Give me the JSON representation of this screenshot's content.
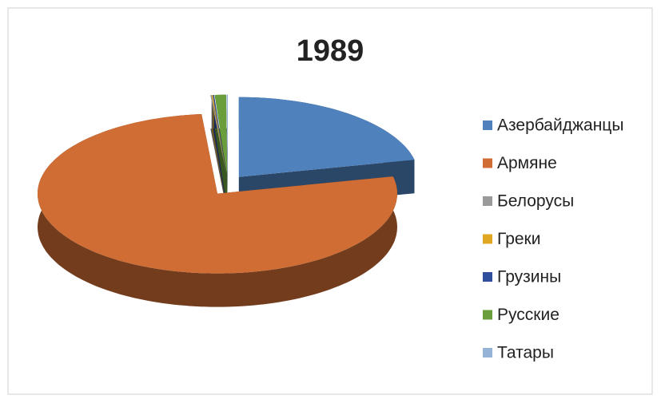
{
  "chart_data": {
    "type": "pie",
    "title": "1989",
    "categories": [
      "Азербайджанцы",
      "Армяне",
      "Белорусы",
      "Греки",
      "Грузины",
      "Русские",
      "Татары"
    ],
    "values": [
      21.5,
      76.9,
      0.1,
      0.1,
      0.1,
      1.0,
      0.1
    ],
    "colors": [
      "#4f81bd",
      "#cf6d34",
      "#9a9a9a",
      "#e0a820",
      "#2f4e9c",
      "#6a9e3a",
      "#95b3d7"
    ],
    "legend": "right"
  }
}
